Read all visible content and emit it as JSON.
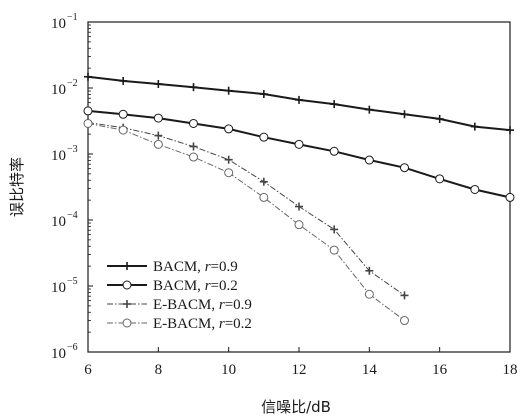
{
  "chart_data": {
    "type": "line",
    "title": "",
    "xlabel": "信噪比/dB",
    "ylabel": "误比特率",
    "xlim": [
      6,
      18
    ],
    "ylim": [
      1e-06,
      0.1
    ],
    "yscale": "log",
    "grid": false,
    "legend_position": "bottom-left",
    "x_ticks": [
      6,
      8,
      10,
      12,
      14,
      16,
      18
    ],
    "y_tick_exponents": [
      -6,
      -5,
      -4,
      -3,
      -2,
      -1
    ],
    "y_tick_base": "10",
    "series": [
      {
        "name_prefix": "BACM, ",
        "name_var": "r",
        "name_suffix": "=0.9",
        "marker": "plus",
        "line": "solid",
        "color": "#1a1a1a",
        "x": [
          6,
          7,
          8,
          9,
          10,
          11,
          12,
          13,
          14,
          15,
          16,
          17,
          18
        ],
        "y": [
          0.0148,
          0.0128,
          0.0115,
          0.0103,
          0.0091,
          0.0081,
          0.0066,
          0.0057,
          0.0047,
          0.004,
          0.0034,
          0.0026,
          0.0023
        ]
      },
      {
        "name_prefix": "BACM, ",
        "name_var": "r",
        "name_suffix": "=0.2",
        "marker": "circle",
        "line": "solid",
        "color": "#1a1a1a",
        "x": [
          6,
          7,
          8,
          9,
          10,
          11,
          12,
          13,
          14,
          15,
          16,
          17,
          18
        ],
        "y": [
          0.0045,
          0.004,
          0.0035,
          0.0029,
          0.0024,
          0.0018,
          0.0014,
          0.0011,
          0.00081,
          0.00062,
          0.00042,
          0.00029,
          0.00022
        ]
      },
      {
        "name_prefix": "E-BACM, ",
        "name_var": "r",
        "name_suffix": "=0.9",
        "marker": "plus",
        "line": "dashdot",
        "color": "#444444",
        "x": [
          6,
          7,
          8,
          9,
          10,
          11,
          12,
          13,
          14,
          15
        ],
        "y": [
          0.003,
          0.0025,
          0.0019,
          0.0013,
          0.00082,
          0.00038,
          0.00016,
          7.2e-05,
          1.7e-05,
          7.2e-06
        ]
      },
      {
        "name_prefix": "E-BACM, ",
        "name_var": "r",
        "name_suffix": "=0.2",
        "marker": "circle",
        "line": "dashdot",
        "color": "#666666",
        "x": [
          6,
          7,
          8,
          9,
          10,
          11,
          12,
          13,
          14,
          15
        ],
        "y": [
          0.0029,
          0.0023,
          0.0014,
          0.0009,
          0.00052,
          0.00022,
          8.5e-05,
          3.5e-05,
          7.5e-06,
          3e-06
        ]
      }
    ]
  }
}
